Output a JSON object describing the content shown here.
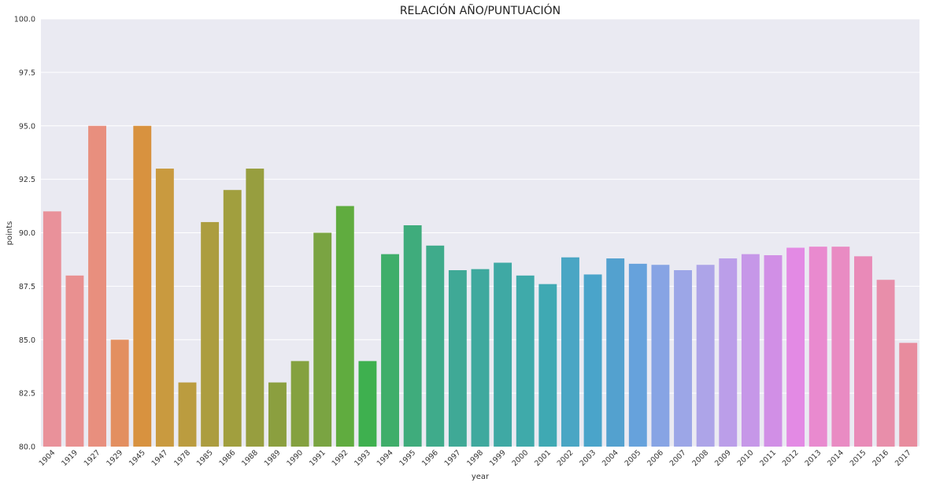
{
  "chart_data": {
    "type": "bar",
    "title": "RELACIÓN AÑO/PUNTUACIÓN",
    "xlabel": "year",
    "ylabel": "points",
    "ylim": [
      80,
      100
    ],
    "yticks": [
      "80.0",
      "82.5",
      "85.0",
      "87.5",
      "90.0",
      "92.5",
      "95.0",
      "97.5",
      "100.0"
    ],
    "grid": true,
    "legend": "none",
    "background_color": "#eaeaf2",
    "categories": [
      "1904",
      "1919",
      "1927",
      "1929",
      "1945",
      "1947",
      "1978",
      "1985",
      "1986",
      "1988",
      "1989",
      "1990",
      "1991",
      "1992",
      "1993",
      "1994",
      "1995",
      "1996",
      "1997",
      "1998",
      "1999",
      "2000",
      "2001",
      "2002",
      "2003",
      "2004",
      "2005",
      "2006",
      "2007",
      "2008",
      "2009",
      "2010",
      "2011",
      "2012",
      "2013",
      "2014",
      "2015",
      "2016",
      "2017"
    ],
    "values": [
      91.0,
      88.0,
      95.0,
      85.0,
      95.0,
      93.0,
      83.0,
      90.5,
      92.0,
      93.0,
      83.0,
      84.0,
      90.0,
      91.25,
      84.0,
      89.0,
      90.35,
      89.4,
      88.25,
      88.3,
      88.6,
      88.0,
      87.6,
      88.85,
      88.05,
      88.8,
      88.55,
      88.5,
      88.25,
      88.5,
      88.8,
      89.0,
      88.95,
      89.3,
      89.35,
      89.35,
      88.9,
      87.8,
      84.85
    ],
    "colors": [
      "#e9919a",
      "#e99090",
      "#e88f7e",
      "#e38f60",
      "#d8923f",
      "#c99a3f",
      "#bb9c3f",
      "#ac9d3f",
      "#a19f3e",
      "#979e3f",
      "#8b9f3f",
      "#84a13f",
      "#7aa442",
      "#60ac3f",
      "#3eb04f",
      "#3fae6a",
      "#3fac7c",
      "#3fab8b",
      "#3fa996",
      "#3fa99e",
      "#3fa9a4",
      "#3faaaa",
      "#3fa9b3",
      "#4aa6c4",
      "#4aa4ca",
      "#53a1cf",
      "#66a2dc",
      "#87a4e4",
      "#9ca6e7",
      "#ada4e8",
      "#bb9ee9",
      "#c697e8",
      "#d18fe6",
      "#e38ae4",
      "#e98acf",
      "#e98bc3",
      "#e98ab8",
      "#e88eaa",
      "#e88c9e"
    ]
  }
}
